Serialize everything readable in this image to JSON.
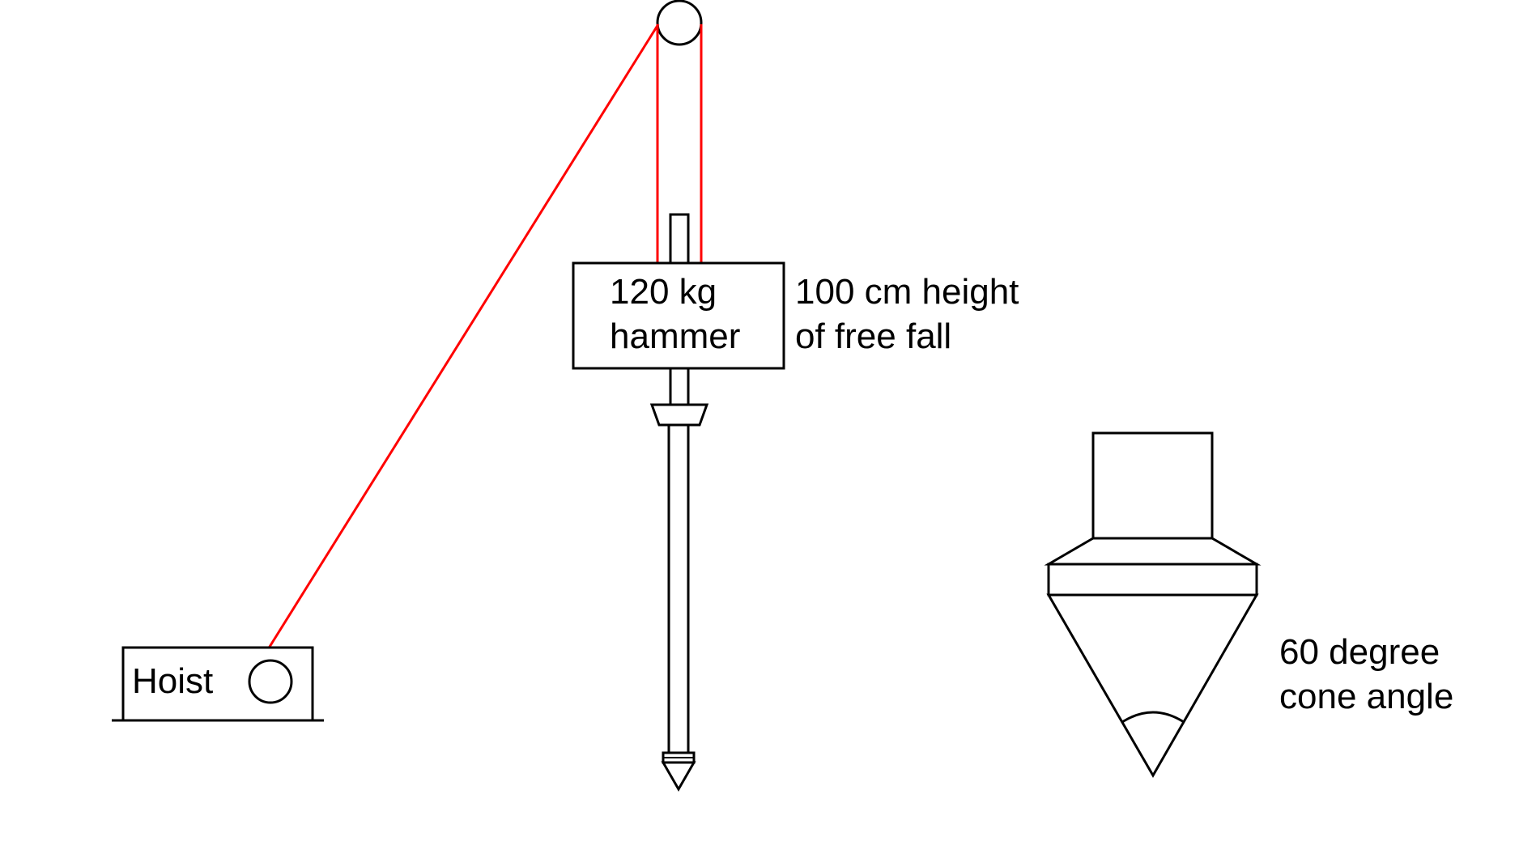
{
  "colors": {
    "rope": "#ff0000",
    "line": "#000000",
    "background": "#ffffff"
  },
  "hoist": {
    "label": "Hoist"
  },
  "hammer": {
    "label_line1": "120 kg",
    "label_line2": "hammer"
  },
  "fall_height": {
    "line1": "100 cm height",
    "line2": "of free fall"
  },
  "cone": {
    "line1": "60 degree",
    "line2": "cone angle"
  }
}
